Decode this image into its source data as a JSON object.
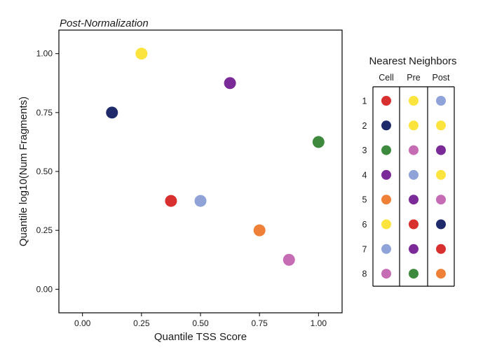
{
  "chart_data": [
    {
      "type": "scatter",
      "title": "Post-Normalization",
      "xlabel": "Quantile TSS Score",
      "ylabel": "Quantile log10(Num Fragments)",
      "xlim": [
        -0.1,
        1.1
      ],
      "ylim": [
        -0.1,
        1.1
      ],
      "x_ticks": [
        "0.00",
        "0.25",
        "0.50",
        "0.75",
        "1.00"
      ],
      "y_ticks": [
        "0.00",
        "0.25",
        "0.50",
        "0.75",
        "1.00"
      ],
      "grid": false,
      "points": [
        {
          "cell": 1,
          "x": 0.375,
          "y": 0.375,
          "color": "#D7302E"
        },
        {
          "cell": 2,
          "x": 0.125,
          "y": 0.75,
          "color": "#1F2A6B"
        },
        {
          "cell": 3,
          "x": 1.0,
          "y": 0.625,
          "color": "#3D8A3E"
        },
        {
          "cell": 4,
          "x": 0.625,
          "y": 0.875,
          "color": "#7B2B97"
        },
        {
          "cell": 5,
          "x": 0.75,
          "y": 0.25,
          "color": "#EE8137"
        },
        {
          "cell": 6,
          "x": 0.25,
          "y": 1.0,
          "color": "#FAE43D"
        },
        {
          "cell": 7,
          "x": 0.5,
          "y": 0.375,
          "color": "#8FA3D8"
        },
        {
          "cell": 8,
          "x": 0.875,
          "y": 0.125,
          "color": "#C56CB4"
        }
      ]
    },
    {
      "type": "table",
      "title": "Nearest Neighbors",
      "columns": [
        "Cell",
        "Pre",
        "Post"
      ],
      "rows": [
        "1",
        "2",
        "3",
        "4",
        "5",
        "6",
        "7",
        "8"
      ],
      "cells": [
        [
          "#D7302E",
          "#FAE43D",
          "#8FA3D8"
        ],
        [
          "#1F2A6B",
          "#FAE43D",
          "#FAE43D"
        ],
        [
          "#3D8A3E",
          "#C56CB4",
          "#7B2B97"
        ],
        [
          "#7B2B97",
          "#8FA3D8",
          "#FAE43D"
        ],
        [
          "#EE8137",
          "#7B2B97",
          "#C56CB4"
        ],
        [
          "#FAE43D",
          "#D7302E",
          "#1F2A6B"
        ],
        [
          "#8FA3D8",
          "#7B2B97",
          "#D7302E"
        ],
        [
          "#C56CB4",
          "#3D8A3E",
          "#EE8137"
        ]
      ]
    }
  ]
}
